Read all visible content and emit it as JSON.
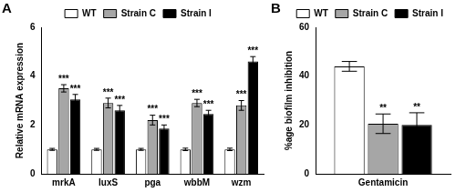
{
  "chart_data": [
    {
      "type": "bar",
      "title": "A",
      "categories": [
        "mrkA",
        "luxS",
        "pga",
        "wbbM",
        "wzm"
      ],
      "y_label": "Relative mRNA expression",
      "ylim": [
        0,
        6
      ],
      "yticks": [
        0,
        2,
        4,
        6
      ],
      "grid": false,
      "legend": "upper center",
      "series": [
        {
          "name": "WT",
          "color": "#ffffff",
          "values": [
            1,
            1,
            1,
            1,
            1
          ],
          "errors": [
            0.04,
            0.04,
            0.04,
            0.05,
            0.05
          ]
        },
        {
          "name": "Strain C",
          "color": "#a6a6a6",
          "values": [
            3.5,
            2.9,
            2.2,
            2.9,
            2.8
          ],
          "errors": [
            0.15,
            0.2,
            0.2,
            0.15,
            0.2
          ],
          "annotations": [
            "***",
            "***",
            "***",
            "***",
            "***"
          ]
        },
        {
          "name": "Strain I",
          "color": "#000000",
          "values": [
            3.05,
            2.6,
            1.85,
            2.45,
            4.6
          ],
          "errors": [
            0.2,
            0.2,
            0.15,
            0.15,
            0.2
          ],
          "annotations": [
            "***",
            "***",
            "***",
            "***",
            "***"
          ]
        }
      ]
    },
    {
      "type": "bar",
      "title": "B",
      "categories": [
        "Gentamicin"
      ],
      "y_label": "%age biofilm inhibition",
      "ylim": [
        0,
        60
      ],
      "yticks": [
        0,
        20,
        40,
        60
      ],
      "grid": false,
      "legend": "upper right",
      "series": [
        {
          "name": "WT",
          "color": "#ffffff",
          "values": [
            44
          ],
          "errors": [
            2
          ]
        },
        {
          "name": "Strain C",
          "color": "#a6a6a6",
          "values": [
            20.5
          ],
          "errors": [
            4
          ],
          "annotations": [
            "**"
          ]
        },
        {
          "name": "Strain I",
          "color": "#000000",
          "values": [
            20
          ],
          "errors": [
            5
          ],
          "annotations": [
            "**"
          ]
        }
      ]
    }
  ]
}
